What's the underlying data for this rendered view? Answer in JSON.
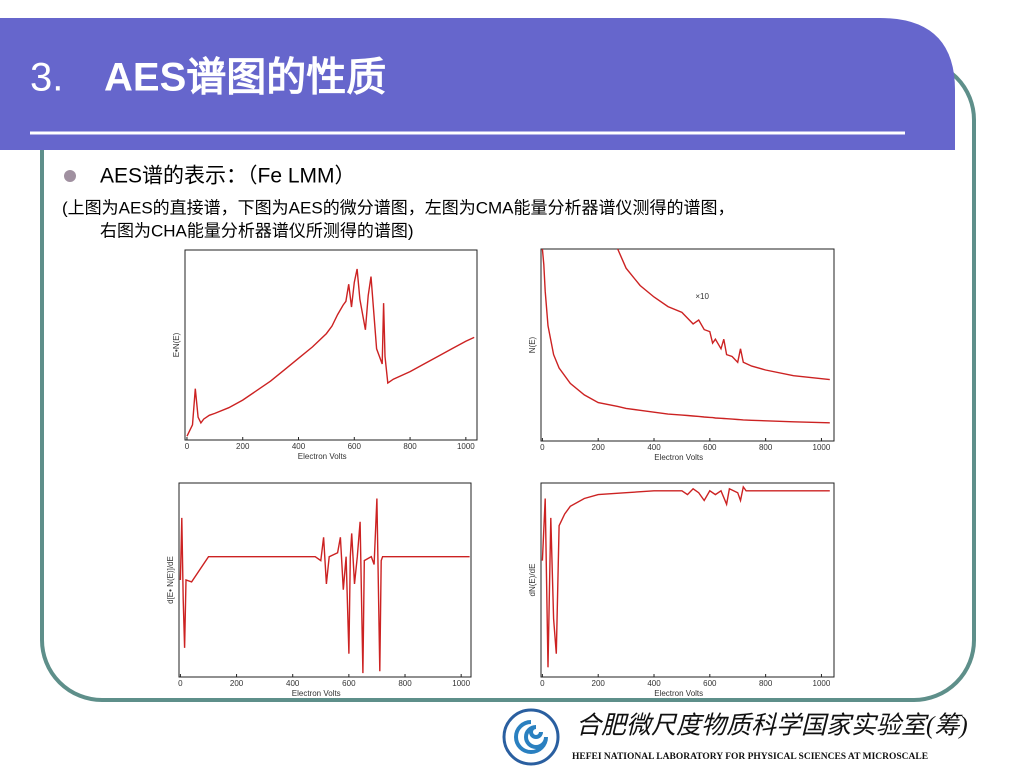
{
  "slide": {
    "title_number": "3.",
    "title_text": "AES谱图的性质",
    "bullet": "AES谱的表示：（Fe LMM）",
    "note": [
      "(上图为AES的直接谱，下图为AES的微分谱图，左图为CMA能量分析器谱仪测得的谱图，",
      "右图为CHA能量分析器谱仪所测得的谱图)"
    ],
    "logo_cn": "合肥微尺度物质科学国家实验室(筹)",
    "logo_en": "HEFEI NATIONAL LABORATORY FOR PHYSICAL SCIENCES AT MICROSCALE"
  },
  "chart_data": [
    {
      "type": "line",
      "xlabel": "Electron Volts",
      "ylabel": "E•N(E)",
      "xlim": [
        -7,
        1040
      ],
      "ylim": [
        0,
        100
      ],
      "xticks": [
        0,
        200,
        400,
        600,
        800,
        1000
      ],
      "x": [
        0,
        20,
        30,
        40,
        50,
        60,
        80,
        100,
        150,
        200,
        250,
        300,
        350,
        400,
        450,
        500,
        520,
        540,
        560,
        570,
        580,
        590,
        600,
        610,
        620,
        640,
        650,
        660,
        680,
        690,
        700,
        705,
        710,
        720,
        740,
        800,
        850,
        900,
        950,
        1000,
        1030
      ],
      "series": [
        {
          "color": "#cc2222",
          "values": [
            2,
            8,
            27,
            12,
            9,
            11,
            13,
            14,
            17,
            21,
            26,
            31,
            37,
            43,
            49,
            56,
            60,
            66,
            71,
            73,
            82,
            70,
            83,
            90,
            74,
            58,
            76,
            86,
            48,
            44,
            40,
            72,
            44,
            30,
            32,
            36,
            40,
            44,
            48,
            52,
            54
          ]
        }
      ]
    },
    {
      "type": "line",
      "xlabel": "Electron Volts",
      "ylabel": "N(E)",
      "annotation": "×10",
      "xlim": [
        -5,
        1045
      ],
      "ylim": [
        0,
        100
      ],
      "xticks": [
        0,
        200,
        400,
        600,
        800,
        1000
      ],
      "x": [
        0,
        5,
        10,
        20,
        40,
        60,
        100,
        150,
        200,
        270,
        300,
        350,
        400,
        450,
        500,
        520,
        540,
        560,
        580,
        600,
        610,
        620,
        640,
        650,
        660,
        680,
        700,
        710,
        720,
        750,
        800,
        900,
        1030
      ],
      "series": [
        {
          "color": "#cc2222",
          "values": [
            100,
            92,
            78,
            60,
            45,
            38,
            30,
            24,
            20,
            18,
            17,
            16,
            15,
            14,
            13.5,
            13.3,
            13,
            12.8,
            12.5,
            12.3,
            12.2,
            12,
            11.8,
            11.7,
            11.6,
            11.4,
            11.2,
            11.1,
            11,
            10.8,
            10.5,
            10,
            9.5
          ]
        },
        {
          "color": "#cc2222",
          "values": [
            null,
            null,
            null,
            null,
            null,
            null,
            null,
            null,
            null,
            100,
            90,
            81,
            75,
            70,
            67,
            64,
            61,
            63,
            58,
            57,
            51,
            53,
            48,
            53,
            45,
            44,
            41,
            48,
            41,
            39,
            37,
            34,
            32
          ]
        }
      ]
    },
    {
      "type": "line",
      "xlabel": "Electron Volts",
      "ylabel": "d[E• N(E)]/dE",
      "xlim": [
        -5,
        1035
      ],
      "ylim": [
        0,
        100
      ],
      "xticks": [
        0,
        200,
        400,
        600,
        800,
        1000
      ],
      "x": [
        0,
        5,
        10,
        15,
        20,
        40,
        100,
        200,
        300,
        400,
        480,
        500,
        510,
        520,
        530,
        560,
        570,
        580,
        590,
        600,
        605,
        610,
        620,
        630,
        640,
        650,
        655,
        680,
        690,
        700,
        710,
        715,
        720,
        800,
        900,
        1030
      ],
      "series": [
        {
          "color": "#cc2222",
          "values": [
            50,
            82,
            40,
            15,
            50,
            49,
            62,
            62,
            62,
            62,
            62,
            60,
            72,
            48,
            62,
            64,
            72,
            45,
            62,
            12,
            62,
            74,
            48,
            62,
            80,
            2,
            60,
            62,
            58,
            92,
            3,
            60,
            62,
            62,
            62,
            62
          ]
        }
      ]
    },
    {
      "type": "line",
      "xlabel": "Electron Volts",
      "ylabel": "dN(E)/dE",
      "xlim": [
        -5,
        1045
      ],
      "ylim": [
        0,
        100
      ],
      "xticks": [
        0,
        200,
        400,
        600,
        800,
        1000
      ],
      "x": [
        0,
        10,
        20,
        30,
        40,
        50,
        60,
        80,
        100,
        150,
        200,
        300,
        400,
        500,
        520,
        540,
        560,
        580,
        600,
        620,
        640,
        660,
        670,
        700,
        710,
        720,
        730,
        1030
      ],
      "series": [
        {
          "color": "#cc2222",
          "values": [
            60,
            92,
            5,
            82,
            30,
            12,
            78,
            84,
            88,
            92,
            94,
            95,
            96,
            96,
            94,
            97,
            95,
            91,
            96,
            94,
            96,
            89,
            97,
            95,
            91,
            98,
            96,
            96
          ]
        }
      ]
    }
  ]
}
